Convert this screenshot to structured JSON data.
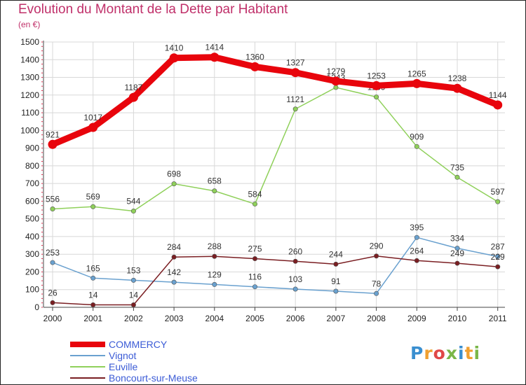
{
  "title": "Evolution du Montant de la Dette par Habitant",
  "unit_label": "(en €)",
  "logo": {
    "text": "Proxiti",
    "letters": [
      {
        "char": "P",
        "color": "#3a8fd0"
      },
      {
        "char": "r",
        "color": "#f0a030"
      },
      {
        "char": "o",
        "color": "#e04848"
      },
      {
        "char": "x",
        "color": "#7ab648"
      },
      {
        "char": "i",
        "color": "#3a8fd0"
      },
      {
        "char": "t",
        "color": "#f0a030"
      },
      {
        "char": "i",
        "color": "#7ab648"
      }
    ]
  },
  "chart_data": {
    "type": "line",
    "x": [
      "2000",
      "2001",
      "2002",
      "2003",
      "2004",
      "2005",
      "2006",
      "2007",
      "2008",
      "2009",
      "2010",
      "2011"
    ],
    "ylim": [
      0,
      1500
    ],
    "yticks": [
      0,
      100,
      200,
      300,
      400,
      500,
      600,
      700,
      800,
      900,
      1000,
      1100,
      1200,
      1300,
      1400,
      1500
    ],
    "grid": true,
    "legend_placement": "bottom-left",
    "series": [
      {
        "name": "COMMERCY",
        "color": "#e8040c",
        "highlight": true,
        "values": [
          921,
          1017,
          1187,
          1410,
          1414,
          1360,
          1327,
          1279,
          1253,
          1265,
          1238,
          1144
        ]
      },
      {
        "name": "Vignot",
        "color": "#6aa1cf",
        "highlight": false,
        "values": [
          253,
          165,
          153,
          142,
          129,
          116,
          103,
          91,
          78,
          395,
          334,
          287
        ]
      },
      {
        "name": "Euville",
        "color": "#8fd05a",
        "highlight": false,
        "values": [
          556,
          569,
          544,
          698,
          658,
          584,
          1121,
          1243,
          1189,
          909,
          735,
          597
        ]
      },
      {
        "name": "Boncourt-sur-Meuse",
        "color": "#7a1e22",
        "highlight": false,
        "values": [
          26,
          14,
          14,
          284,
          288,
          275,
          260,
          244,
          290,
          264,
          249,
          229
        ]
      }
    ]
  }
}
